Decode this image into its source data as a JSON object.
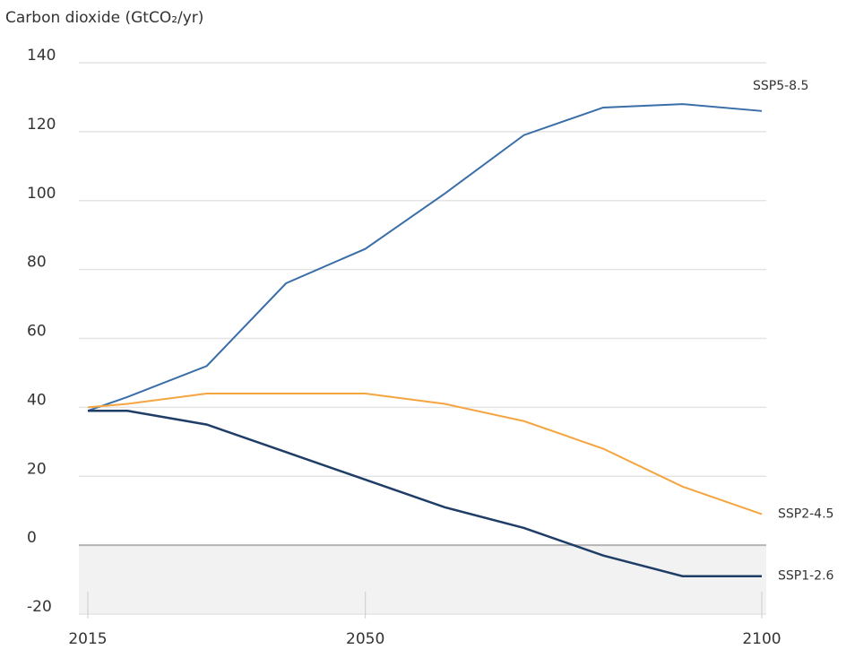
{
  "chart_data": {
    "type": "line",
    "title": "Carbon dioxide (GtCO₂/yr)",
    "x": [
      2015,
      2020,
      2030,
      2040,
      2050,
      2060,
      2070,
      2080,
      2090,
      2100
    ],
    "series": [
      {
        "name": "SSP5-8.5",
        "color": "#3a6ea8",
        "label_color": "#79a3d6",
        "values": [
          39,
          43,
          52,
          76,
          86,
          102,
          119,
          127,
          128,
          126
        ]
      },
      {
        "name": "SSP2-4.5",
        "color": "#f5a540",
        "label_color": "#f5a540",
        "values": [
          40,
          41,
          44,
          44,
          44,
          41,
          36,
          28,
          17,
          9
        ]
      },
      {
        "name": "SSP1-2.6",
        "color": "#1f3d66",
        "label_color": "#1f3d66",
        "values": [
          39,
          39,
          35,
          27,
          19,
          11,
          5,
          -3,
          -9,
          -9
        ]
      }
    ],
    "xlim": [
      2015,
      2100
    ],
    "xticks": [
      2015,
      2050,
      2100
    ],
    "ylim": [
      -20,
      140
    ],
    "yticks": [
      -20,
      0,
      20,
      40,
      60,
      80,
      100,
      120,
      140
    ],
    "grid": true
  }
}
